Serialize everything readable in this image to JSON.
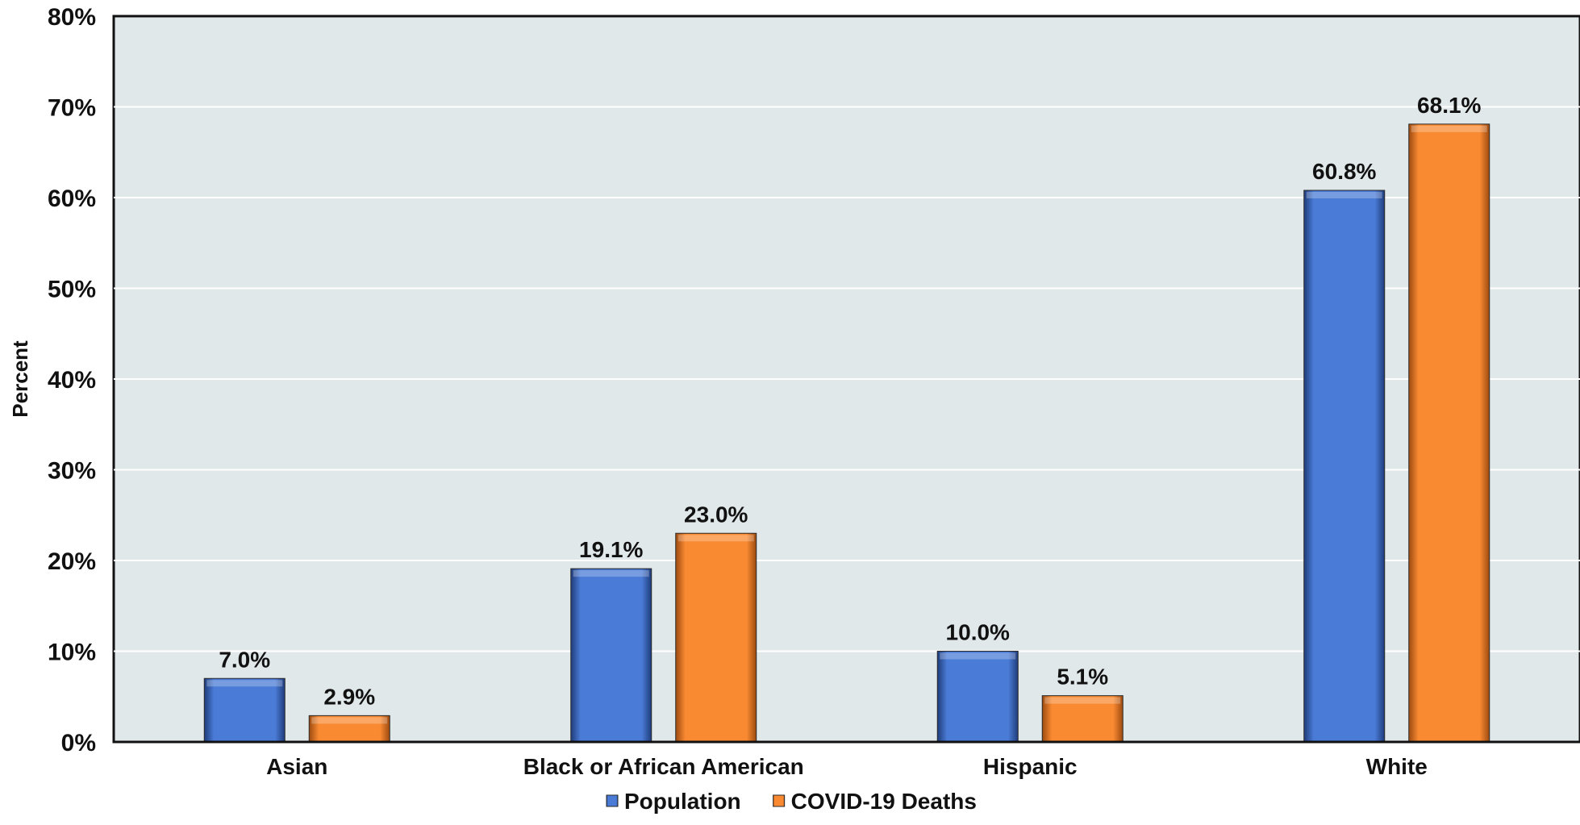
{
  "chart_data": {
    "type": "bar",
    "title": "",
    "xlabel": "",
    "ylabel": "Percent",
    "ylim": [
      0,
      80
    ],
    "yticks": [
      0,
      10,
      20,
      30,
      40,
      50,
      60,
      70,
      80
    ],
    "ytick_labels": [
      "0%",
      "10%",
      "20%",
      "30%",
      "40%",
      "50%",
      "60%",
      "70%",
      "80%"
    ],
    "categories": [
      "Asian",
      "Black or African American",
      "Hispanic",
      "White"
    ],
    "series": [
      {
        "name": "Population",
        "color": "#4a7bd6",
        "values": [
          7.0,
          19.1,
          10.0,
          60.8
        ],
        "labels": [
          "7.0%",
          "19.1%",
          "10.0%",
          "60.8%"
        ]
      },
      {
        "name": "COVID-19 Deaths",
        "color": "#fa8a32",
        "values": [
          2.9,
          23.0,
          5.1,
          68.1
        ],
        "labels": [
          "2.9%",
          "23.0%",
          "5.1%",
          "68.1%"
        ]
      }
    ],
    "grid": true,
    "plot_background": "#e1e8ea",
    "legend_position": "bottom-center"
  }
}
